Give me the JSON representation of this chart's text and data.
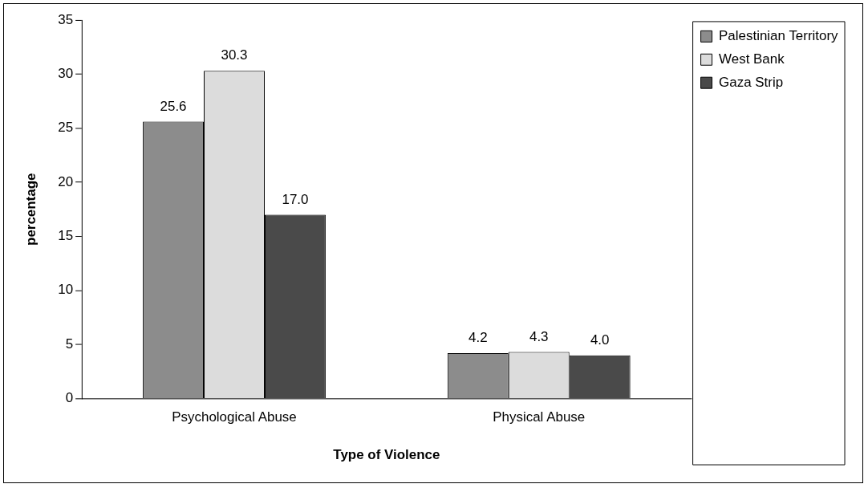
{
  "chart_data": {
    "type": "bar",
    "xlabel": "Type of Violence",
    "ylabel": "percentage",
    "categories": [
      "Psychological Abuse",
      "Physical Abuse"
    ],
    "series": [
      {
        "name": "Palestinian Territory",
        "color": "#8c8c8c",
        "values": [
          25.6,
          4.2
        ],
        "value_labels": [
          "25.6",
          "4.2"
        ]
      },
      {
        "name": "West Bank",
        "color": "#dcdcdc",
        "values": [
          30.3,
          4.3
        ],
        "value_labels": [
          "30.3",
          "4.3"
        ]
      },
      {
        "name": "Gaza Strip",
        "color": "#4a4a4a",
        "values": [
          17.0,
          4.0
        ],
        "value_labels": [
          "17.0",
          "4.0"
        ]
      }
    ],
    "ylim": [
      0,
      35
    ],
    "yticks": [
      0,
      5,
      10,
      15,
      20,
      25,
      30,
      35
    ],
    "grid": false,
    "legend": "top right"
  }
}
